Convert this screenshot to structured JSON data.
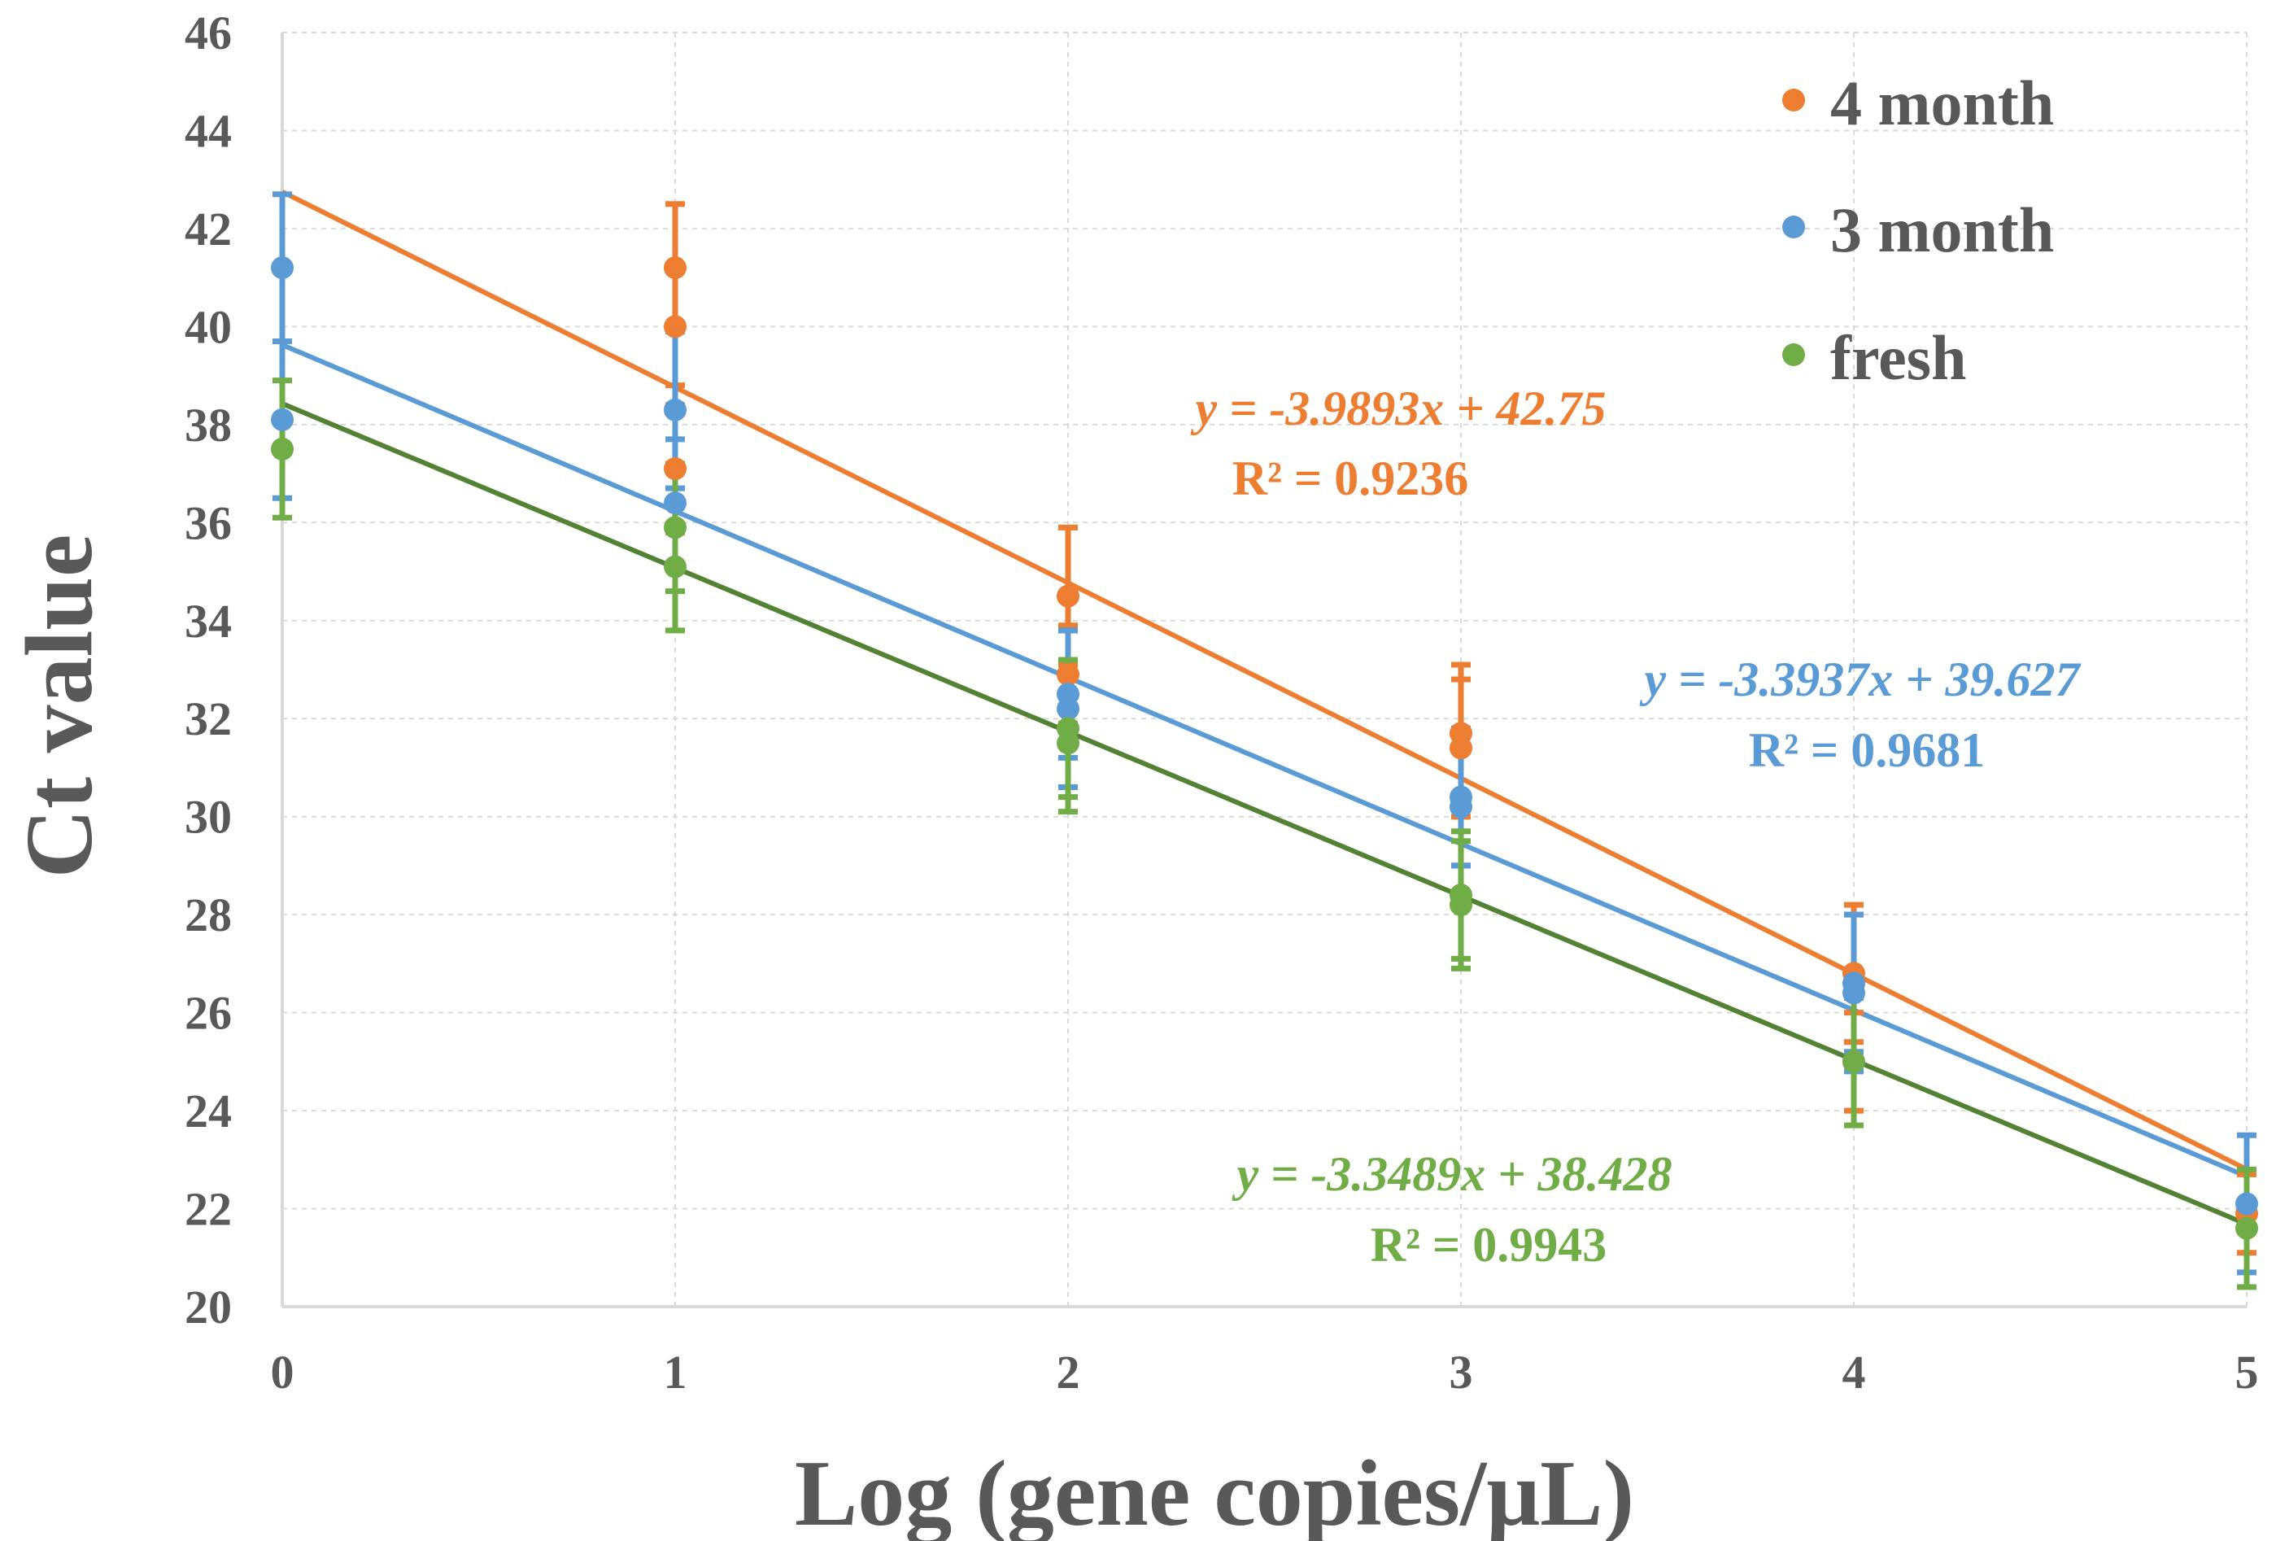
{
  "chart_data": {
    "type": "scatter",
    "title": "",
    "xlabel": "Log (gene copies/μL)",
    "ylabel": "Ct value",
    "xlim": [
      0,
      5
    ],
    "ylim": [
      20,
      46
    ],
    "x_ticks": [
      0,
      1,
      2,
      3,
      4,
      5
    ],
    "y_ticks": [
      20,
      22,
      24,
      26,
      28,
      30,
      32,
      34,
      36,
      38,
      40,
      42,
      44,
      46
    ],
    "grid": true,
    "legend_position": "top-right",
    "series": [
      {
        "name": "4 month",
        "color": "#ED7D31",
        "points": [
          {
            "x": 1,
            "y": 41.2,
            "err": 1.3
          },
          {
            "x": 1,
            "y": 40.0,
            "err": 1.2
          },
          {
            "x": 1,
            "y": 37.1,
            "err": 1.3
          },
          {
            "x": 2,
            "y": 34.5,
            "err": 1.4
          },
          {
            "x": 2,
            "y": 32.9,
            "err": 1.0
          },
          {
            "x": 3,
            "y": 31.7,
            "err": 1.4
          },
          {
            "x": 3,
            "y": 31.4,
            "err": 1.4
          },
          {
            "x": 4,
            "y": 26.8,
            "err": 1.4
          },
          {
            "x": 4,
            "y": 25.0,
            "err": 1.0
          },
          {
            "x": 5,
            "y": 21.9,
            "err": 0.8
          }
        ],
        "trendline": {
          "slope": -3.9893,
          "intercept": 42.75
        },
        "equation": "y = -3.9893x + 42.75",
        "r2": "R² = 0.9236"
      },
      {
        "name": "3 month",
        "color": "#5B9BD5",
        "points": [
          {
            "x": 0,
            "y": 41.2,
            "err": 1.5
          },
          {
            "x": 0,
            "y": 38.1,
            "err": 1.6
          },
          {
            "x": 1,
            "y": 38.3,
            "err": 1.6
          },
          {
            "x": 1,
            "y": 36.4,
            "err": 1.3
          },
          {
            "x": 2,
            "y": 32.5,
            "err": 1.3
          },
          {
            "x": 2,
            "y": 32.2,
            "err": 1.6
          },
          {
            "x": 3,
            "y": 30.4,
            "err": 1.4
          },
          {
            "x": 3,
            "y": 30.2,
            "err": 1.2
          },
          {
            "x": 4,
            "y": 26.6,
            "err": 1.4
          },
          {
            "x": 4,
            "y": 26.4,
            "err": 1.6
          },
          {
            "x": 5,
            "y": 22.1,
            "err": 1.4
          }
        ],
        "trendline": {
          "slope": -3.3937,
          "intercept": 39.627
        },
        "equation": "y = -3.3937x + 39.627",
        "r2": "R² = 0.9681"
      },
      {
        "name": "fresh",
        "color": "#70AD47",
        "trendline_color": "#548235",
        "points": [
          {
            "x": 0,
            "y": 37.5,
            "err": 1.4
          },
          {
            "x": 1,
            "y": 35.9,
            "err": 1.3
          },
          {
            "x": 1,
            "y": 35.1,
            "err": 1.3
          },
          {
            "x": 2,
            "y": 31.8,
            "err": 1.4
          },
          {
            "x": 2,
            "y": 31.5,
            "err": 1.4
          },
          {
            "x": 3,
            "y": 28.4,
            "err": 1.3
          },
          {
            "x": 3,
            "y": 28.2,
            "err": 1.3
          },
          {
            "x": 4,
            "y": 25.0,
            "err": 1.3
          },
          {
            "x": 5,
            "y": 21.6,
            "err": 1.2
          }
        ],
        "trendline": {
          "slope": -3.3489,
          "intercept": 38.428
        },
        "equation": "y = -3.3489x + 38.428",
        "r2": "R² = 0.9943"
      }
    ]
  }
}
